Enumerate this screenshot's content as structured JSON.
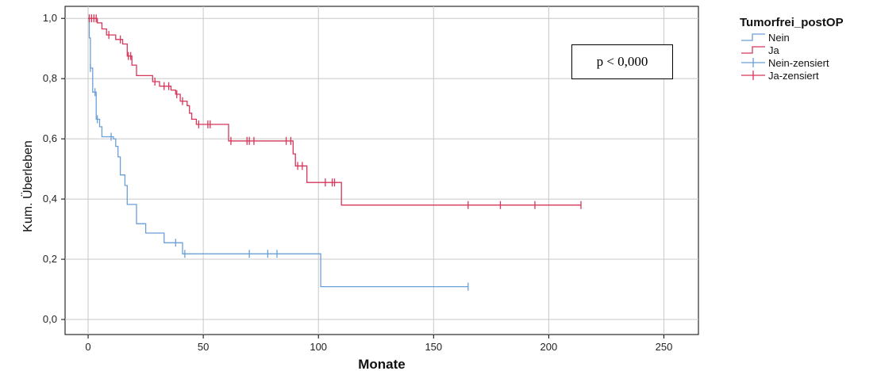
{
  "chart_data": {
    "type": "line",
    "subtype": "kaplan-meier",
    "xlabel": "Monate",
    "ylabel": "Kum. Überleben",
    "xlim": [
      -10,
      265
    ],
    "ylim": [
      -0.05,
      1.04
    ],
    "xticks": [
      0,
      50,
      100,
      150,
      200,
      250
    ],
    "yticks": [
      0.0,
      0.2,
      0.4,
      0.6,
      0.8,
      1.0
    ],
    "xtick_labels": [
      "0",
      "50",
      "100",
      "150",
      "200",
      "250"
    ],
    "ytick_labels": [
      "0,0",
      "0,2",
      "0,4",
      "0,6",
      "0,8",
      "1,0"
    ],
    "grid": true,
    "legend_placement": "top-right outside",
    "legend_title": "Tumorfrei_postOP",
    "legend_entries": [
      {
        "label": "Nein",
        "kind": "line",
        "color": "#6a9fd8"
      },
      {
        "label": "Ja",
        "kind": "line",
        "color": "#d6365a"
      },
      {
        "label": "Nein-zensiert",
        "kind": "censor",
        "color": "#6a9fd8"
      },
      {
        "label": "Ja-zensiert",
        "kind": "censor",
        "color": "#d6365a"
      }
    ],
    "annotation": "p < 0,000",
    "series": [
      {
        "name": "Nein",
        "color": "#6a9fd8",
        "steps": [
          [
            0,
            1.0
          ],
          [
            0.5,
            0.935
          ],
          [
            1,
            0.835
          ],
          [
            2,
            0.755
          ],
          [
            3.5,
            0.665
          ],
          [
            5,
            0.64
          ],
          [
            6,
            0.607
          ],
          [
            11,
            0.6
          ],
          [
            12,
            0.575
          ],
          [
            13,
            0.54
          ],
          [
            14,
            0.48
          ],
          [
            16,
            0.445
          ],
          [
            17,
            0.382
          ],
          [
            21,
            0.318
          ],
          [
            25,
            0.287
          ],
          [
            33,
            0.255
          ],
          [
            41,
            0.218
          ],
          [
            101,
            0.109
          ],
          [
            165,
            0.109
          ]
        ],
        "censored": [
          [
            1,
            0.835
          ],
          [
            3,
            0.755
          ],
          [
            4,
            0.665
          ],
          [
            10,
            0.607
          ],
          [
            38,
            0.255
          ],
          [
            42,
            0.218
          ],
          [
            70,
            0.218
          ],
          [
            78,
            0.218
          ],
          [
            82,
            0.218
          ],
          [
            165,
            0.109
          ]
        ]
      },
      {
        "name": "Ja",
        "color": "#d6365a",
        "steps": [
          [
            0,
            1.0
          ],
          [
            4,
            0.985
          ],
          [
            6,
            0.965
          ],
          [
            8,
            0.945
          ],
          [
            12,
            0.93
          ],
          [
            15,
            0.915
          ],
          [
            17,
            0.875
          ],
          [
            19,
            0.845
          ],
          [
            21,
            0.81
          ],
          [
            28,
            0.79
          ],
          [
            31,
            0.775
          ],
          [
            36,
            0.762
          ],
          [
            38,
            0.748
          ],
          [
            40,
            0.725
          ],
          [
            43,
            0.71
          ],
          [
            44,
            0.685
          ],
          [
            45,
            0.665
          ],
          [
            47,
            0.648
          ],
          [
            61,
            0.593
          ],
          [
            89,
            0.55
          ],
          [
            90,
            0.51
          ],
          [
            95,
            0.455
          ],
          [
            110,
            0.38
          ],
          [
            214,
            0.38
          ]
        ],
        "censored": [
          [
            0.5,
            1.0
          ],
          [
            1.5,
            1.0
          ],
          [
            2.5,
            1.0
          ],
          [
            3.5,
            1.0
          ],
          [
            9,
            0.945
          ],
          [
            14,
            0.93
          ],
          [
            17.5,
            0.875
          ],
          [
            18.5,
            0.875
          ],
          [
            29,
            0.79
          ],
          [
            33,
            0.775
          ],
          [
            35,
            0.775
          ],
          [
            38.5,
            0.748
          ],
          [
            41,
            0.725
          ],
          [
            48,
            0.648
          ],
          [
            52,
            0.648
          ],
          [
            53,
            0.648
          ],
          [
            62,
            0.593
          ],
          [
            69,
            0.593
          ],
          [
            70,
            0.593
          ],
          [
            72,
            0.593
          ],
          [
            86,
            0.593
          ],
          [
            88,
            0.593
          ],
          [
            91,
            0.51
          ],
          [
            93,
            0.51
          ],
          [
            103,
            0.455
          ],
          [
            106,
            0.455
          ],
          [
            107,
            0.455
          ],
          [
            165,
            0.38
          ],
          [
            179,
            0.38
          ],
          [
            194,
            0.38
          ],
          [
            214,
            0.38
          ]
        ]
      }
    ]
  }
}
